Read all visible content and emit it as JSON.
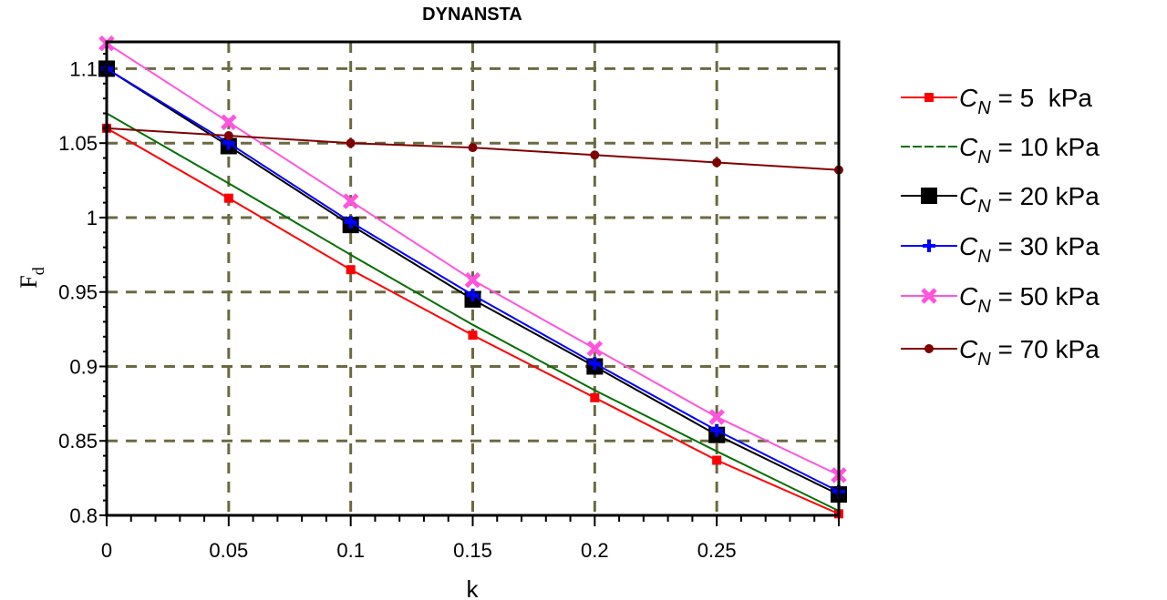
{
  "chart_data": {
    "type": "line",
    "title": "DYNANSTA",
    "xlabel": "k",
    "ylabel": "F",
    "ylabel_sub": "d",
    "xlim": [
      0,
      0.3
    ],
    "ylim": [
      0.8,
      1.118
    ],
    "grid": true,
    "legend_position": "right",
    "x_ticks": [
      0,
      0.05,
      0.1,
      0.15,
      0.2,
      0.25
    ],
    "x_tick_labels": [
      "0",
      "0.05",
      "0.1",
      "0.15",
      "0.2",
      "0.25"
    ],
    "y_ticks": [
      0.8,
      0.85,
      0.9,
      0.95,
      1.0,
      1.05,
      1.1
    ],
    "y_tick_labels": [
      "0.8",
      "0.85",
      "0.9",
      "0.95",
      "1",
      "1.05",
      "1.1"
    ],
    "x": [
      0,
      0.05,
      0.1,
      0.15,
      0.2,
      0.25,
      0.3
    ],
    "series": [
      {
        "name": "C_N = 5 kPa",
        "label_c": "C",
        "label_sub": "N",
        "label_rest": " = 5  kPa",
        "color": "#ff0000",
        "marker": "square-small",
        "values": [
          1.06,
          1.013,
          0.965,
          0.921,
          0.879,
          0.837,
          0.801
        ]
      },
      {
        "name": "C_N = 10 kPa",
        "label_c": "C",
        "label_sub": "N",
        "label_rest": " = 10 kPa",
        "color": "#007000",
        "marker": "none",
        "values": [
          1.07,
          1.023,
          0.975,
          0.928,
          0.884,
          0.843,
          0.803
        ]
      },
      {
        "name": "C_N = 20 kPa",
        "label_c": "C",
        "label_sub": "N",
        "label_rest": " = 20 kPa",
        "color": "#000000",
        "marker": "square",
        "values": [
          1.1,
          1.048,
          0.995,
          0.945,
          0.9,
          0.854,
          0.814
        ]
      },
      {
        "name": "C_N = 30 kPa",
        "label_c": "C",
        "label_sub": "N",
        "label_rest": " = 30 kPa",
        "color": "#0000ff",
        "marker": "plus",
        "values": [
          1.1,
          1.05,
          0.997,
          0.948,
          0.902,
          0.857,
          0.816
        ]
      },
      {
        "name": "C_N = 50 kPa",
        "label_c": "C",
        "label_sub": "N",
        "label_rest": " = 50 kPa",
        "color": "#ff55dd",
        "marker": "x",
        "values": [
          1.117,
          1.064,
          1.011,
          0.958,
          0.912,
          0.866,
          0.827
        ]
      },
      {
        "name": "C_N = 70 kPa",
        "label_c": "C",
        "label_sub": "N",
        "label_rest": " = 70 kPa",
        "color": "#800000",
        "marker": "circle",
        "values": [
          1.06,
          1.055,
          1.05,
          1.047,
          1.042,
          1.037,
          1.032
        ]
      }
    ]
  }
}
